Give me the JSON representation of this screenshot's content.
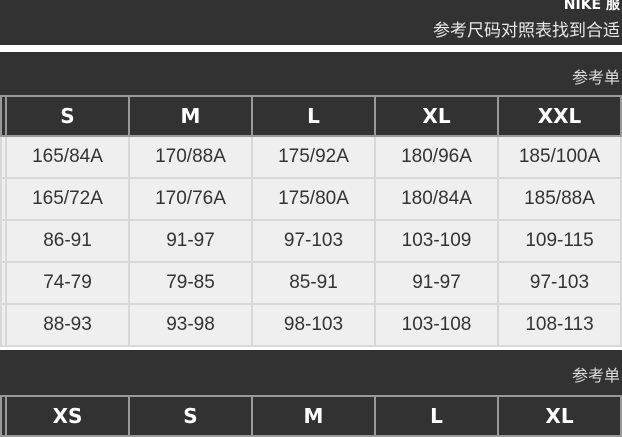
{
  "header": {
    "brand": "NIKE 服",
    "subtitle": "参考尺码对照表找到合适"
  },
  "table1": {
    "reference_label": "参考单",
    "columns": [
      "",
      "S",
      "M",
      "L",
      "XL",
      "XXL"
    ],
    "rows": [
      [
        "",
        "165/84A",
        "170/88A",
        "175/92A",
        "180/96A",
        "185/100A"
      ],
      [
        "",
        "165/72A",
        "170/76A",
        "175/80A",
        "180/84A",
        "185/88A"
      ],
      [
        "",
        "86-91",
        "91-97",
        "97-103",
        "103-109",
        "109-115"
      ],
      [
        "",
        "74-79",
        "79-85",
        "85-91",
        "91-97",
        "97-103"
      ],
      [
        "",
        "88-93",
        "93-98",
        "98-103",
        "103-108",
        "108-113"
      ]
    ]
  },
  "table2": {
    "reference_label": "参考单",
    "columns": [
      "",
      "XS",
      "S",
      "M",
      "L",
      "XL"
    ]
  }
}
